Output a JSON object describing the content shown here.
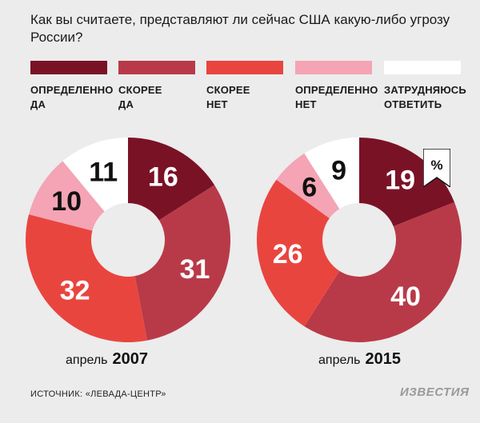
{
  "title": "Как вы считаете, представляют ли сейчас США какую-либо угрозу России?",
  "legend": [
    {
      "label": "ОПРЕДЕЛЕННО\nДА",
      "color": "#7a1226"
    },
    {
      "label": "СКОРЕЕ\nДА",
      "color": "#b83a48"
    },
    {
      "label": "СКОРЕЕ\nНЕТ",
      "color": "#e9453f"
    },
    {
      "label": "ОПРЕДЕЛЕННО\nНЕТ",
      "color": "#f4a4b4"
    },
    {
      "label": "ЗАТРУДНЯЮСЬ\nОТВЕТИТЬ",
      "color": "#ffffff"
    }
  ],
  "percent_sign": "%",
  "chart_data": [
    {
      "type": "pie",
      "caption_prefix": "апрель",
      "caption_year": "2007",
      "categories": [
        "ОПРЕДЕЛЕННО ДА",
        "СКОРЕЕ ДА",
        "СКОРЕЕ НЕТ",
        "ОПРЕДЕЛЕННО НЕТ",
        "ЗАТРУДНЯЮСЬ ОТВЕТИТЬ"
      ],
      "values": [
        16,
        31,
        32,
        10,
        11
      ]
    },
    {
      "type": "pie",
      "caption_prefix": "апрель",
      "caption_year": "2015",
      "categories": [
        "ОПРЕДЕЛЕННО ДА",
        "СКОРЕЕ ДА",
        "СКОРЕЕ НЕТ",
        "ОПРЕДЕЛЕННО НЕТ",
        "ЗАТРУДНЯЮСЬ ОТВЕТИТЬ"
      ],
      "values": [
        19,
        40,
        26,
        6,
        9
      ]
    }
  ],
  "source": "ИСТОЧНИК: «ЛЕВАДА-ЦЕНТР»",
  "logo": "ИЗВЕСТИЯ"
}
